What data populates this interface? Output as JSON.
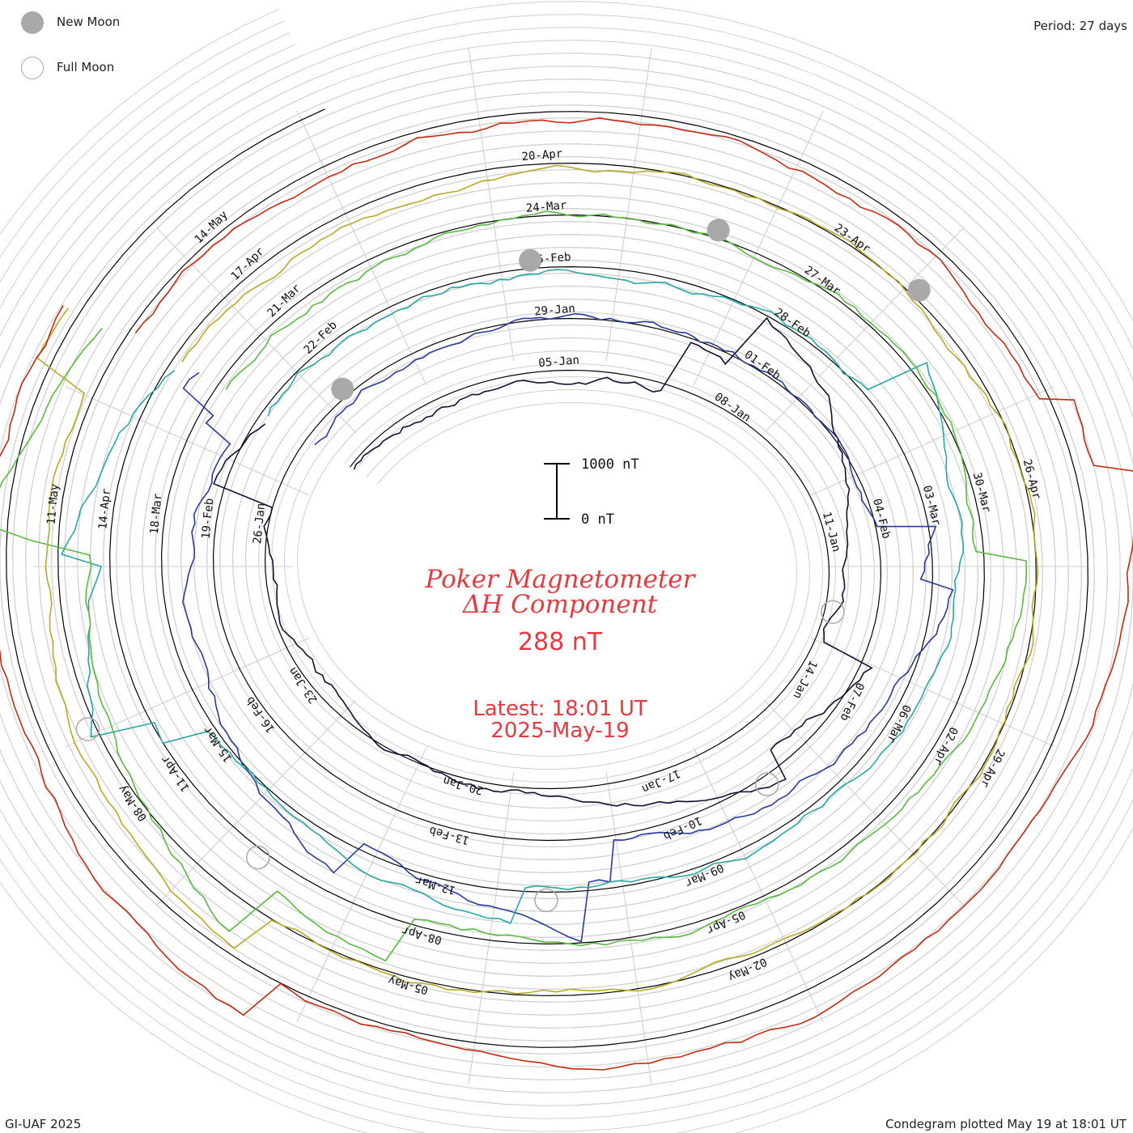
{
  "header": {
    "period_label": "Period: 27 days"
  },
  "legend": {
    "new_moon_label": "New Moon",
    "full_moon_label": "Full Moon"
  },
  "center": {
    "title_line1": "Poker Magnetometer",
    "title_line2": "ΔH Component",
    "current_value": "288 nT",
    "latest_line1": "Latest: 18:01 UT",
    "latest_line2": "2025-May-19",
    "scale_top_label": "1000 nT",
    "scale_bottom_label": "0 nT"
  },
  "footer": {
    "credit": "GI-UAF 2025",
    "plotted": "Condegram plotted May 19 at 18:01 UT"
  },
  "colors": {
    "text_red": "#e8393f",
    "grid": "#c8c8c8",
    "baseline": "#000000",
    "moon": "#a9a9a9"
  },
  "chart_data": {
    "type": "line",
    "subtype": "condegram (spiral)",
    "period_days": 27,
    "scale_nT": [
      0,
      1000
    ],
    "value_nT": 288,
    "series": [
      {
        "color": "#111133",
        "start": "2025-01-01",
        "date_labels": [
          "05-Jan",
          "08-Jan",
          "11-Jan",
          "14-Jan",
          "17-Jan",
          "20-Jan",
          "23-Jan",
          "26-Jan"
        ]
      },
      {
        "color": "#2a3a9c",
        "start": "2025-01-28",
        "date_labels": [
          "29-Jan",
          "01-Feb",
          "04-Feb",
          "07-Feb",
          "10-Feb",
          "13-Feb",
          "16-Feb",
          "19-Feb",
          "22-Feb"
        ]
      },
      {
        "color": "#2aa6a6",
        "start": "2025-02-24",
        "date_labels": [
          "25-Feb",
          "28-Feb",
          "03-Mar",
          "06-Mar",
          "09-Mar",
          "12-Mar",
          "15-Mar",
          "18-Mar",
          "21-Mar"
        ]
      },
      {
        "color": "#5cb844",
        "start": "2025-03-23",
        "date_labels": [
          "24-Mar",
          "27-Mar",
          "30-Mar",
          "02-Apr",
          "05-Apr",
          "08-Apr",
          "11-Apr",
          "14-Apr",
          "17-Apr"
        ]
      },
      {
        "color": "#b8a828",
        "start": "2025-04-19",
        "date_labels": [
          "20-Apr",
          "23-Apr",
          "26-Apr",
          "29-Apr",
          "02-May",
          "05-May",
          "08-May",
          "11-May",
          "14-May"
        ]
      },
      {
        "color": "#c42a12",
        "start": "2025-05-16",
        "date_labels": []
      }
    ],
    "new_moon_dates": [
      "2025-01-29",
      "2025-02-28",
      "2025-03-29",
      "2025-04-27"
    ],
    "full_moon_dates": [
      "2025-01-13",
      "2025-02-12",
      "2025-03-14",
      "2025-04-13",
      "2025-05-12"
    ]
  }
}
